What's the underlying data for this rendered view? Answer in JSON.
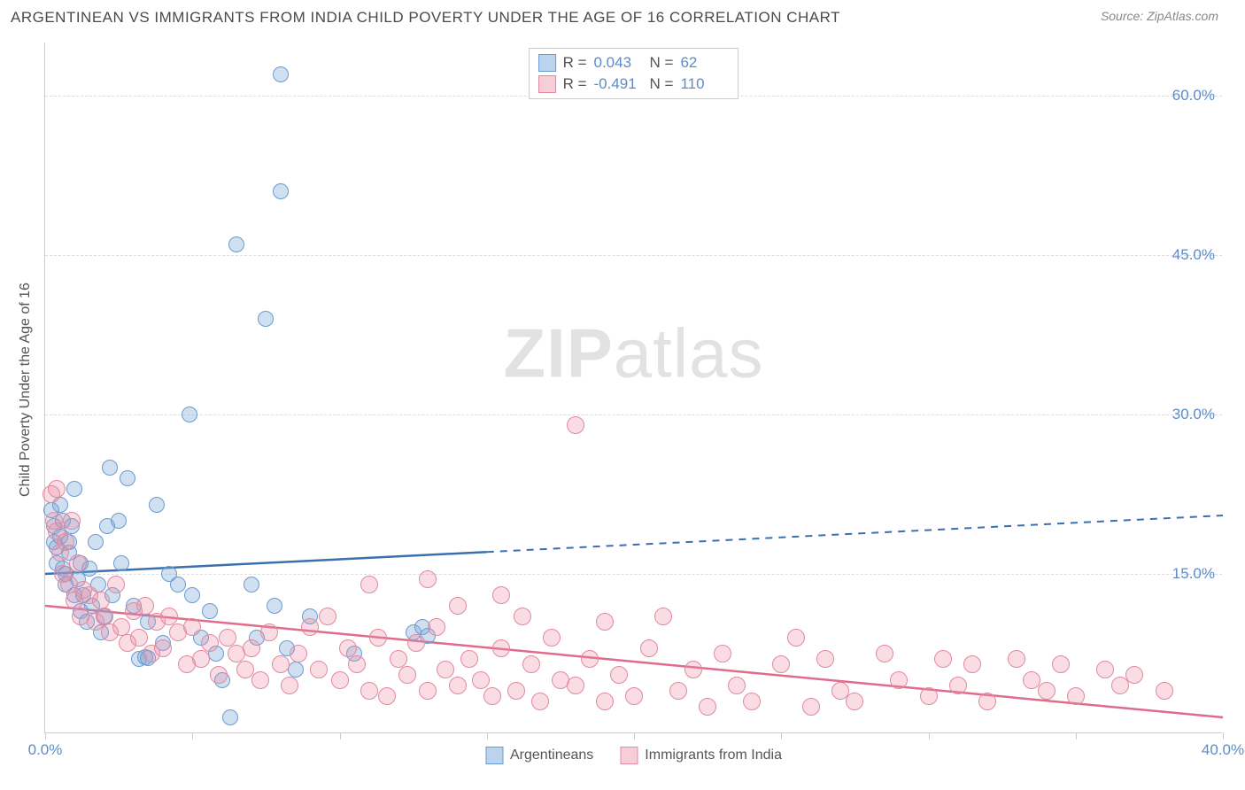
{
  "title": "ARGENTINEAN VS IMMIGRANTS FROM INDIA CHILD POVERTY UNDER THE AGE OF 16 CORRELATION CHART",
  "source_label": "Source: ",
  "source_value": "ZipAtlas.com",
  "y_axis_title": "Child Poverty Under the Age of 16",
  "watermark_a": "ZIP",
  "watermark_b": "atlas",
  "chart": {
    "type": "scatter",
    "xlim": [
      0,
      40
    ],
    "ylim": [
      0,
      65
    ],
    "xticks": [
      0,
      5,
      10,
      15,
      20,
      25,
      30,
      35,
      40
    ],
    "xtick_labels": {
      "0": "0.0%",
      "40": "40.0%"
    },
    "yticks": [
      15,
      30,
      45,
      60
    ],
    "ytick_labels": [
      "15.0%",
      "30.0%",
      "45.0%",
      "60.0%"
    ],
    "grid_color": "#dddddd",
    "background_color": "#ffffff",
    "series": [
      {
        "name": "Argentineans",
        "fill": "rgba(120,165,216,0.35)",
        "stroke": "#6a9bd1",
        "swatch_fill": "#bcd3ed",
        "swatch_border": "#6a9bd1",
        "marker_radius": 9,
        "R": "0.043",
        "N": "62",
        "trend": {
          "y_at_x0": 15.0,
          "y_at_xmax": 20.5,
          "solid_until_x": 15,
          "color": "#3a6fb0"
        },
        "points": [
          [
            0.2,
            21
          ],
          [
            0.3,
            19.5
          ],
          [
            0.3,
            18
          ],
          [
            0.4,
            17.5
          ],
          [
            0.4,
            16
          ],
          [
            0.5,
            18.5
          ],
          [
            0.5,
            21.5
          ],
          [
            0.6,
            20
          ],
          [
            0.6,
            15.5
          ],
          [
            0.7,
            14
          ],
          [
            0.7,
            15
          ],
          [
            0.8,
            17
          ],
          [
            0.8,
            18
          ],
          [
            0.9,
            19.5
          ],
          [
            1.0,
            23
          ],
          [
            1.0,
            13
          ],
          [
            1.1,
            14.5
          ],
          [
            1.2,
            16
          ],
          [
            1.2,
            11.5
          ],
          [
            1.3,
            13
          ],
          [
            1.4,
            10.5
          ],
          [
            1.5,
            15.5
          ],
          [
            1.6,
            12
          ],
          [
            1.7,
            18
          ],
          [
            1.8,
            14
          ],
          [
            1.9,
            9.5
          ],
          [
            2.0,
            11
          ],
          [
            2.1,
            19.5
          ],
          [
            2.2,
            25
          ],
          [
            2.3,
            13
          ],
          [
            2.5,
            20
          ],
          [
            2.6,
            16
          ],
          [
            2.8,
            24
          ],
          [
            3.0,
            12
          ],
          [
            3.2,
            7
          ],
          [
            3.4,
            7.2
          ],
          [
            3.5,
            7.1
          ],
          [
            3.5,
            10.5
          ],
          [
            3.8,
            21.5
          ],
          [
            4.0,
            8.5
          ],
          [
            4.2,
            15
          ],
          [
            4.5,
            14
          ],
          [
            4.9,
            30
          ],
          [
            5.0,
            13
          ],
          [
            5.3,
            9
          ],
          [
            5.6,
            11.5
          ],
          [
            5.8,
            7.5
          ],
          [
            6.0,
            5
          ],
          [
            6.3,
            1.5
          ],
          [
            6.5,
            46
          ],
          [
            7.0,
            14
          ],
          [
            7.2,
            9
          ],
          [
            7.5,
            39
          ],
          [
            7.8,
            12
          ],
          [
            8.0,
            51
          ],
          [
            8.0,
            62
          ],
          [
            8.2,
            8
          ],
          [
            8.5,
            6
          ],
          [
            9.0,
            11
          ],
          [
            10.5,
            7.5
          ],
          [
            12.5,
            9.5
          ],
          [
            12.8,
            10
          ],
          [
            13.0,
            9.2
          ]
        ]
      },
      {
        "name": "Immigrants from India",
        "fill": "rgba(235,140,165,0.30)",
        "stroke": "#e28aa0",
        "swatch_fill": "#f6cdd8",
        "swatch_border": "#e28aa0",
        "marker_radius": 10,
        "R": "-0.491",
        "N": "110",
        "trend": {
          "y_at_x0": 12.0,
          "y_at_xmax": 1.5,
          "solid_until_x": 40,
          "color": "#e06b8a"
        },
        "points": [
          [
            0.2,
            22.5
          ],
          [
            0.3,
            20
          ],
          [
            0.4,
            19
          ],
          [
            0.4,
            23
          ],
          [
            0.5,
            17
          ],
          [
            0.6,
            15
          ],
          [
            0.7,
            18
          ],
          [
            0.8,
            14
          ],
          [
            0.9,
            20
          ],
          [
            1.0,
            12.5
          ],
          [
            1.1,
            16
          ],
          [
            1.2,
            11
          ],
          [
            1.3,
            13.5
          ],
          [
            1.5,
            13
          ],
          [
            1.7,
            10.5
          ],
          [
            1.9,
            12.5
          ],
          [
            2.0,
            11
          ],
          [
            2.2,
            9.5
          ],
          [
            2.4,
            14
          ],
          [
            2.6,
            10
          ],
          [
            2.8,
            8.5
          ],
          [
            3.0,
            11.5
          ],
          [
            3.2,
            9
          ],
          [
            3.4,
            12
          ],
          [
            3.6,
            7.5
          ],
          [
            3.8,
            10.5
          ],
          [
            4.0,
            8
          ],
          [
            4.2,
            11
          ],
          [
            4.5,
            9.5
          ],
          [
            4.8,
            6.5
          ],
          [
            5.0,
            10
          ],
          [
            5.3,
            7
          ],
          [
            5.6,
            8.5
          ],
          [
            5.9,
            5.5
          ],
          [
            6.2,
            9
          ],
          [
            6.5,
            7.5
          ],
          [
            6.8,
            6
          ],
          [
            7.0,
            8
          ],
          [
            7.3,
            5
          ],
          [
            7.6,
            9.5
          ],
          [
            8.0,
            6.5
          ],
          [
            8.3,
            4.5
          ],
          [
            8.6,
            7.5
          ],
          [
            9.0,
            10
          ],
          [
            9.3,
            6
          ],
          [
            9.6,
            11
          ],
          [
            10.0,
            5
          ],
          [
            10.3,
            8
          ],
          [
            10.6,
            6.5
          ],
          [
            11.0,
            4
          ],
          [
            11.0,
            14
          ],
          [
            11.3,
            9
          ],
          [
            11.6,
            3.5
          ],
          [
            12.0,
            7
          ],
          [
            12.3,
            5.5
          ],
          [
            12.6,
            8.5
          ],
          [
            13.0,
            4
          ],
          [
            13.0,
            14.5
          ],
          [
            13.3,
            10
          ],
          [
            13.6,
            6
          ],
          [
            14.0,
            4.5
          ],
          [
            14.0,
            12
          ],
          [
            14.4,
            7
          ],
          [
            14.8,
            5
          ],
          [
            15.2,
            3.5
          ],
          [
            15.5,
            8
          ],
          [
            15.5,
            13
          ],
          [
            16.0,
            4
          ],
          [
            16.2,
            11
          ],
          [
            16.5,
            6.5
          ],
          [
            16.8,
            3
          ],
          [
            17.2,
            9
          ],
          [
            17.5,
            5
          ],
          [
            18.0,
            29
          ],
          [
            18.0,
            4.5
          ],
          [
            18.5,
            7
          ],
          [
            19.0,
            3
          ],
          [
            19.0,
            10.5
          ],
          [
            19.5,
            5.5
          ],
          [
            20.0,
            3.5
          ],
          [
            20.5,
            8
          ],
          [
            21.0,
            11
          ],
          [
            21.5,
            4
          ],
          [
            22.0,
            6
          ],
          [
            22.5,
            2.5
          ],
          [
            23.0,
            7.5
          ],
          [
            23.5,
            4.5
          ],
          [
            24.0,
            3
          ],
          [
            25.0,
            6.5
          ],
          [
            25.5,
            9
          ],
          [
            26.0,
            2.5
          ],
          [
            26.5,
            7
          ],
          [
            27.0,
            4
          ],
          [
            27.5,
            3
          ],
          [
            28.5,
            7.5
          ],
          [
            29.0,
            5
          ],
          [
            30.0,
            3.5
          ],
          [
            30.5,
            7
          ],
          [
            31.0,
            4.5
          ],
          [
            31.5,
            6.5
          ],
          [
            32.0,
            3
          ],
          [
            33.0,
            7
          ],
          [
            33.5,
            5
          ],
          [
            34.0,
            4
          ],
          [
            34.5,
            6.5
          ],
          [
            35.0,
            3.5
          ],
          [
            36.0,
            6
          ],
          [
            36.5,
            4.5
          ],
          [
            37.0,
            5.5
          ],
          [
            38.0,
            4
          ]
        ]
      }
    ]
  }
}
